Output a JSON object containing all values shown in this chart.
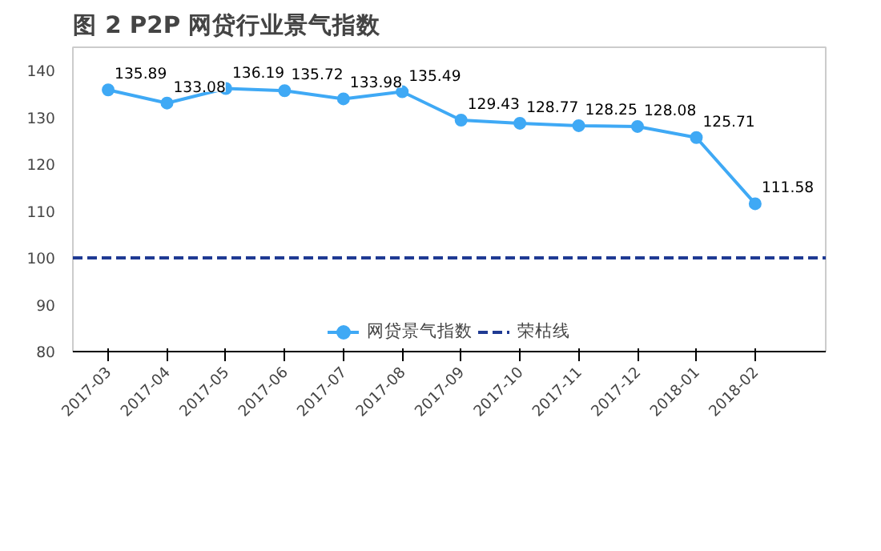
{
  "chart_data": {
    "type": "line",
    "title": "图 2   P2P 网贷行业景气指数",
    "categories": [
      "2017-03",
      "2017-04",
      "2017-05",
      "2017-06",
      "2017-07",
      "2017-08",
      "2017-09",
      "2017-10",
      "2017-11",
      "2017-12",
      "2018-01",
      "2018-02"
    ],
    "series": [
      {
        "name": "网贷景气指数",
        "color": "#3fa9f5",
        "values": [
          135.89,
          133.08,
          136.19,
          135.72,
          133.98,
          135.49,
          129.43,
          128.77,
          128.25,
          128.08,
          125.71,
          111.58
        ]
      }
    ],
    "ylim": [
      80,
      145
    ],
    "yticks": [
      80,
      90,
      100,
      110,
      120,
      130,
      140
    ],
    "ref_lines": [
      {
        "axis": "y",
        "value": 100,
        "label": "荣枯线",
        "color": "#1f3a93",
        "line_style": "dashed"
      }
    ],
    "data_labels": true,
    "legend": "bottom",
    "marker": "circle",
    "line_style": "solid",
    "grid": false
  }
}
